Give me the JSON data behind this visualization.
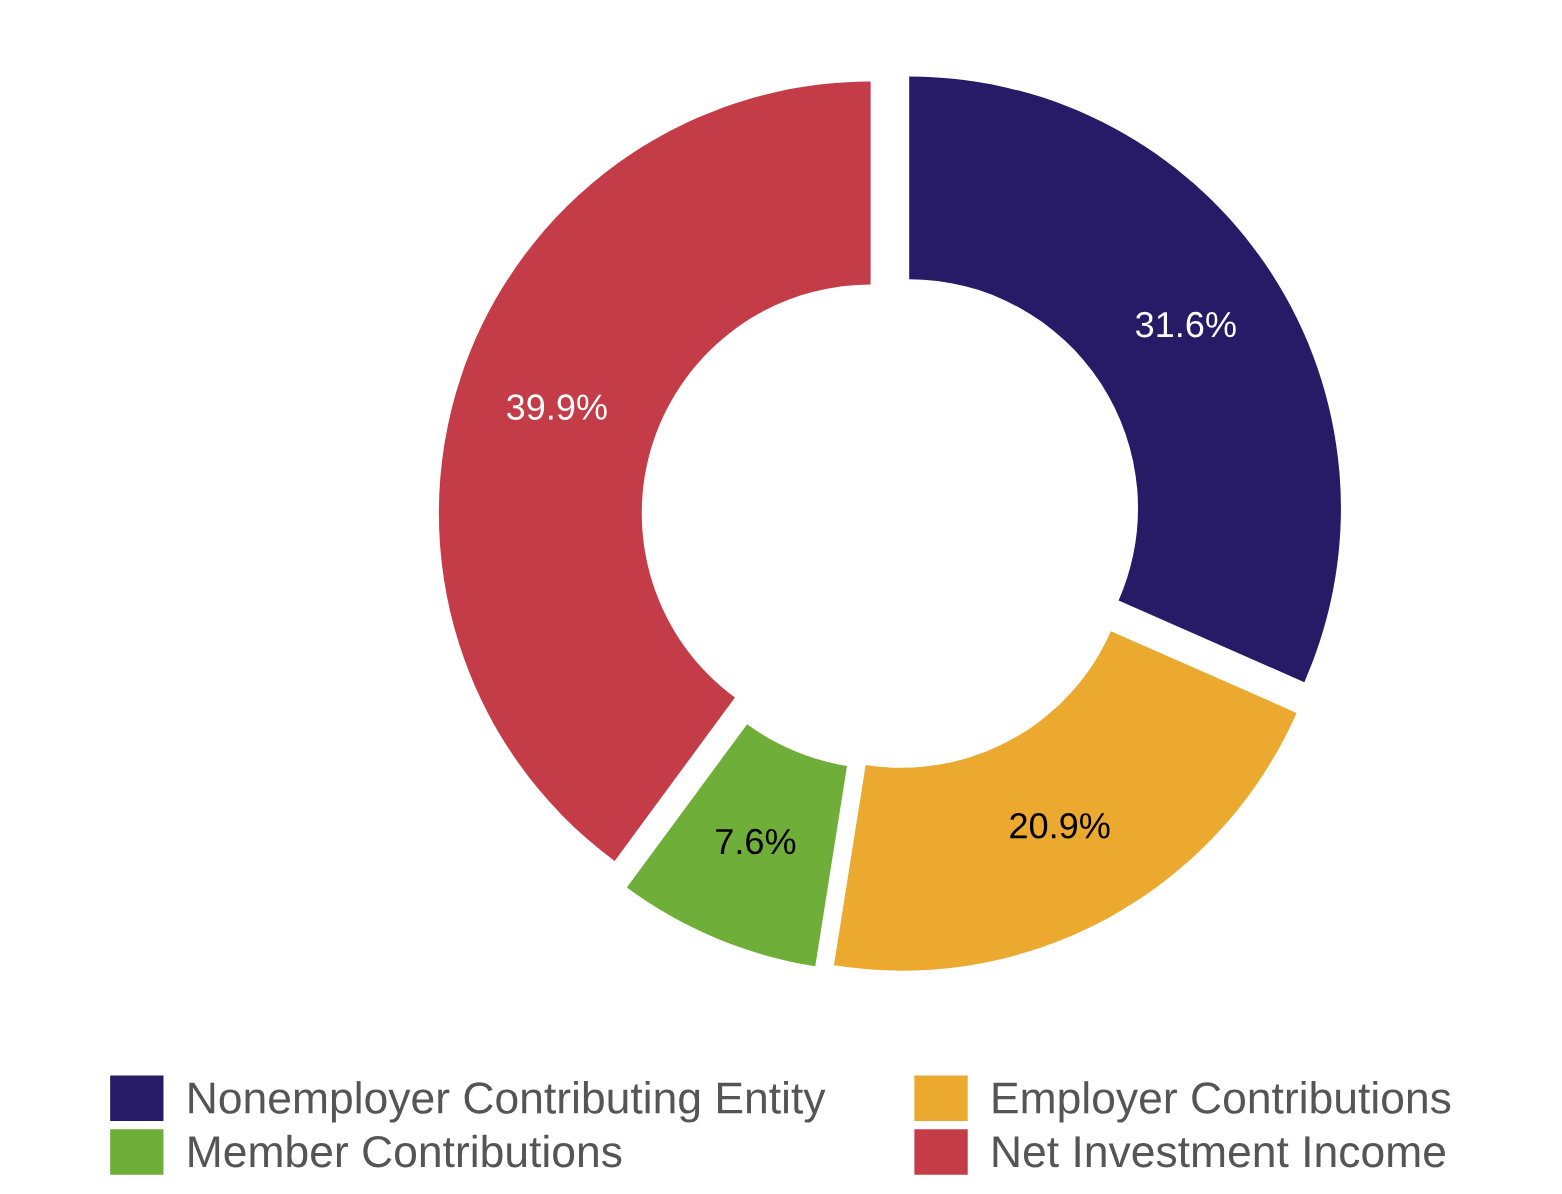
{
  "chart_data": {
    "type": "donut",
    "categories": [
      "Nonemployer Contributing Entity",
      "Employer Contributions",
      "Member Contributions",
      "Net Investment Income"
    ],
    "values": [
      31.6,
      20.9,
      7.6,
      39.9
    ],
    "value_labels": [
      "31.6%",
      "20.9%",
      "7.6%",
      "39.9%"
    ],
    "colors": [
      "#271a67",
      "#eba92f",
      "#6fae38",
      "#c43c47"
    ],
    "legend": "bottom"
  }
}
